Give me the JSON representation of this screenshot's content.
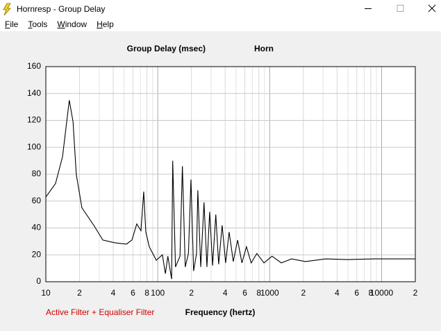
{
  "window": {
    "title": "Hornresp - Group Delay"
  },
  "menu": [
    "File",
    "Tools",
    "Window",
    "Help"
  ],
  "chart_data": {
    "type": "line",
    "title": "Group Delay (msec)",
    "subtitle": "Horn",
    "x_label": "Frequency (hertz)",
    "annotation": "Active Filter + Equaliser Filter",
    "xscale": "log",
    "grid": true,
    "color": "#000000",
    "xlim": [
      10,
      20000
    ],
    "ylim": [
      0,
      160
    ],
    "yticks": [
      0,
      20,
      40,
      60,
      80,
      100,
      120,
      140,
      160
    ],
    "xticks": [
      10,
      {
        "value": 20,
        "label": "2"
      },
      {
        "value": 40,
        "label": "4"
      },
      {
        "value": 60,
        "label": "6"
      },
      {
        "value": 80,
        "label": "8"
      },
      100,
      {
        "value": 200,
        "label": "2"
      },
      {
        "value": 400,
        "label": "4"
      },
      {
        "value": 600,
        "label": "6"
      },
      {
        "value": 800,
        "label": "8"
      },
      1000,
      {
        "value": 2000,
        "label": "2"
      },
      {
        "value": 4000,
        "label": "4"
      },
      {
        "value": 6000,
        "label": "6"
      },
      {
        "value": 8000,
        "label": "8"
      },
      10000,
      {
        "value": 20000,
        "label": "2"
      }
    ],
    "xminorticks": [
      30,
      50,
      70,
      90,
      300,
      500,
      700,
      900,
      3000,
      5000,
      7000,
      9000
    ],
    "x": [
      10,
      12.2,
      14.1,
      16.2,
      17.5,
      18.7,
      21,
      26.8,
      32.3,
      41.1,
      52.5,
      58.8,
      64.9,
      70.8,
      74.9,
      78.2,
      84,
      97,
      110,
      117,
      123,
      133,
      136,
      144,
      158,
      166,
      176,
      188,
      198,
      209,
      222,
      228,
      242,
      259,
      275,
      291,
      309,
      330,
      350,
      376,
      404,
      434,
      473,
      517,
      565,
      620,
      683,
      768,
      889,
      1050,
      1270,
      1570,
      2090,
      3170,
      4940,
      8700,
      20000
    ],
    "values": [
      63,
      73,
      93,
      135,
      119,
      80,
      55,
      42,
      31,
      29,
      28,
      31,
      43,
      38,
      67,
      37,
      26,
      16,
      20,
      6,
      19,
      2,
      90,
      11,
      19,
      86,
      11,
      21,
      76,
      8,
      21,
      68,
      11,
      59,
      11,
      52,
      12,
      50,
      13,
      42,
      14,
      37,
      15,
      31,
      14,
      26,
      14,
      21,
      14,
      19,
      14,
      17,
      15,
      17,
      16.5,
      17,
      17
    ]
  }
}
